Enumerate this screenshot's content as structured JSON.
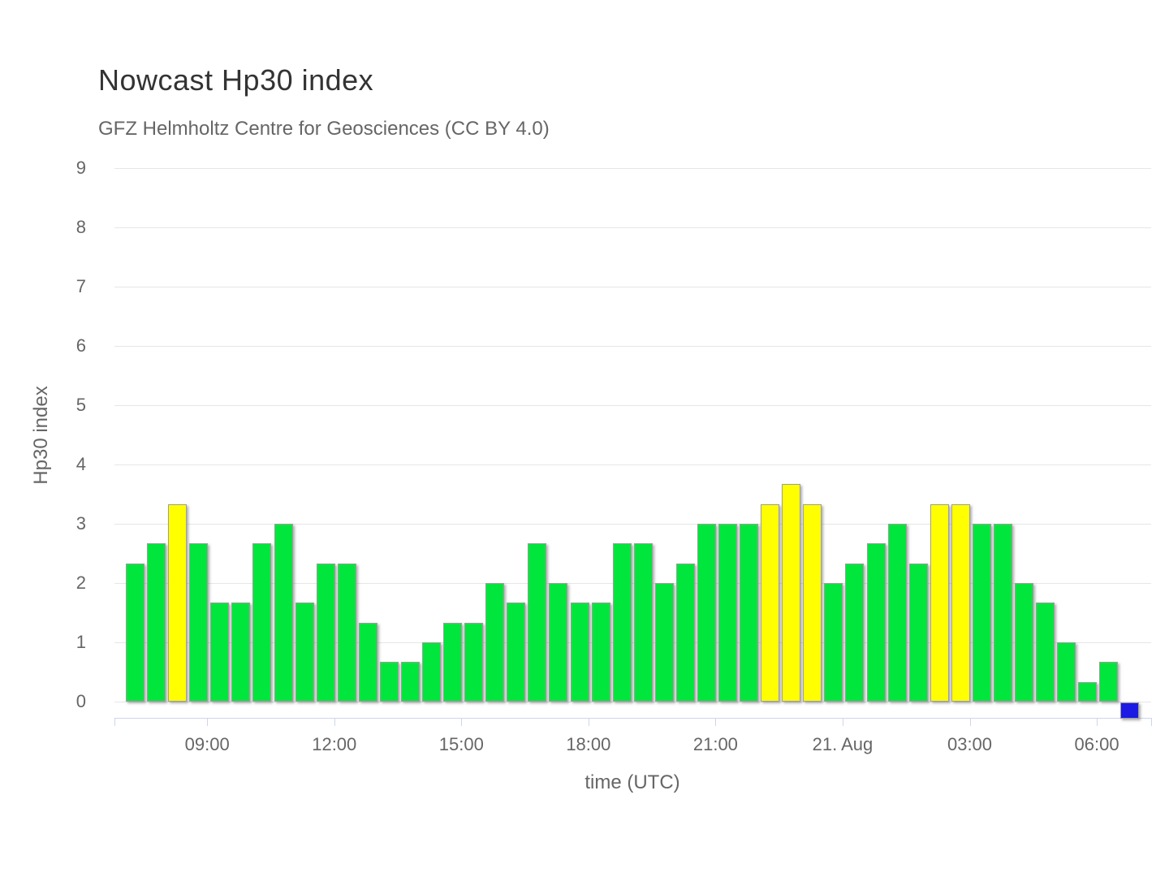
{
  "chart": {
    "accent_colors": {
      "grid": "#e6e6e6",
      "axis_line": "#ccd6eb",
      "text_title": "#333333",
      "text_muted": "#666666"
    }
  },
  "chart_data": {
    "type": "bar",
    "title": "Nowcast Hp30 index",
    "subtitle": "GFZ Helmholtz Centre for Geosciences (CC BY 4.0)",
    "xlabel": "time (UTC)",
    "ylabel": "Hp30 index",
    "ylim": [
      0,
      9
    ],
    "y_ticks": [
      "0",
      "1",
      "2",
      "3",
      "4",
      "5",
      "6",
      "7",
      "8",
      "9"
    ],
    "x_tick_labels": [
      "09:00",
      "12:00",
      "15:00",
      "18:00",
      "21:00",
      "21. Aug",
      "03:00",
      "06:00"
    ],
    "grid": true,
    "legend": "none",
    "categories": [
      "07:00",
      "07:30",
      "08:00",
      "08:30",
      "09:00",
      "09:30",
      "10:00",
      "10:30",
      "11:00",
      "11:30",
      "12:00",
      "12:30",
      "13:00",
      "13:30",
      "14:00",
      "14:30",
      "15:00",
      "15:30",
      "16:00",
      "16:30",
      "17:00",
      "17:30",
      "18:00",
      "18:30",
      "19:00",
      "19:30",
      "20:00",
      "20:30",
      "21:00",
      "21:30",
      "22:00",
      "22:30",
      "23:00",
      "23:30",
      "00:00",
      "00:30",
      "01:00",
      "01:30",
      "02:00",
      "02:30",
      "03:00",
      "03:30",
      "04:00",
      "04:30",
      "05:00",
      "05:30",
      "06:00",
      "06:30"
    ],
    "values": [
      2.33,
      2.67,
      3.33,
      2.67,
      1.67,
      1.67,
      2.67,
      3,
      1.67,
      2.33,
      2.33,
      1.33,
      0.67,
      0.67,
      1,
      1.33,
      1.33,
      2,
      1.67,
      2.67,
      2,
      1.67,
      1.67,
      2.67,
      2.67,
      2,
      2.33,
      3,
      3,
      3,
      3.33,
      3.67,
      3.33,
      2,
      2.33,
      2.67,
      3,
      2.33,
      3.33,
      3.33,
      3,
      3,
      2,
      1.67,
      1,
      0.33,
      0.67,
      0
    ],
    "point_colors": [
      "green",
      "green",
      "yellow",
      "green",
      "green",
      "green",
      "green",
      "green",
      "green",
      "green",
      "green",
      "green",
      "green",
      "green",
      "green",
      "green",
      "green",
      "green",
      "green",
      "green",
      "green",
      "green",
      "green",
      "green",
      "green",
      "green",
      "green",
      "green",
      "green",
      "green",
      "yellow",
      "yellow",
      "yellow",
      "green",
      "green",
      "green",
      "green",
      "green",
      "yellow",
      "yellow",
      "green",
      "green",
      "green",
      "green",
      "green",
      "green",
      "green",
      "blue"
    ],
    "colors": {
      "green": "#00e63c",
      "yellow": "#ffff00",
      "blue": "#1b1be4"
    }
  }
}
